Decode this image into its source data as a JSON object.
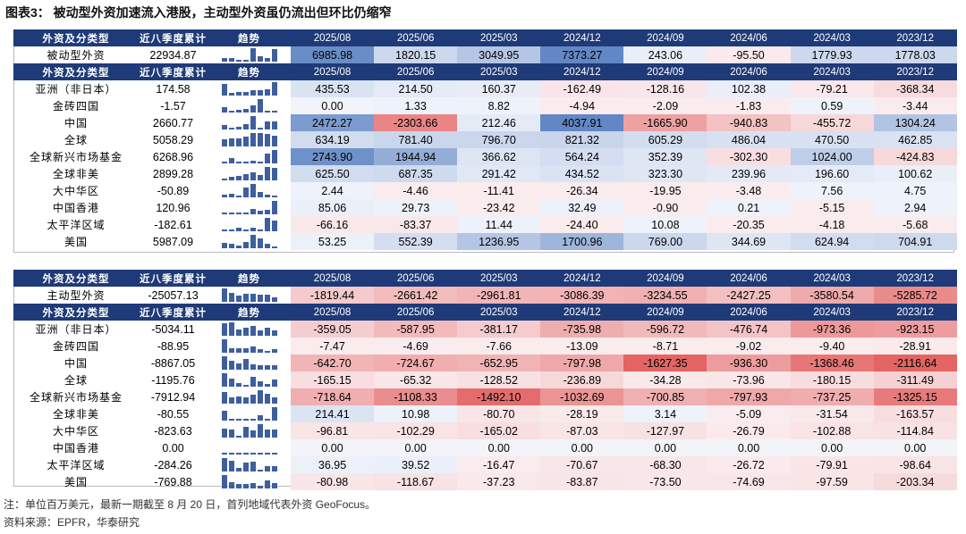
{
  "title": "图表3：  被动型外资加速流入港股，主动型外资虽仍流出但环比仍缩窄",
  "columns": [
    "外资及分类型",
    "近八季度累计",
    "趋势",
    "2025/08",
    "2025/06",
    "2025/03",
    "2024/12",
    "2024/09",
    "2024/06",
    "2024/03",
    "2023/12"
  ],
  "colors": {
    "header": "#1f3a78",
    "positive": "#3e5f9e",
    "negative": "#e05a5a"
  },
  "tables": [
    {
      "summary": {
        "name": "被动型外资",
        "total": "22934.87",
        "values": [
          "6985.98",
          "1820.15",
          "3049.95",
          "7373.27",
          "243.06",
          "-95.50",
          "1779.93",
          "1778.03"
        ]
      },
      "rows": [
        {
          "name": "亚洲（非日本）",
          "total": "174.58",
          "values": [
            "435.53",
            "214.50",
            "160.37",
            "-162.49",
            "-128.16",
            "102.38",
            "-79.21",
            "-368.34"
          ]
        },
        {
          "name": "金砖四国",
          "total": "-1.57",
          "values": [
            "0.00",
            "1.33",
            "8.82",
            "-4.94",
            "-2.09",
            "-1.83",
            "0.59",
            "-3.44"
          ]
        },
        {
          "name": "中国",
          "total": "2660.77",
          "values": [
            "2472.27",
            "-2303.66",
            "212.46",
            "4037.91",
            "-1665.90",
            "-940.83",
            "-455.72",
            "1304.24"
          ]
        },
        {
          "name": "全球",
          "total": "5058.29",
          "values": [
            "634.19",
            "781.40",
            "796.70",
            "821.32",
            "605.29",
            "486.04",
            "470.50",
            "462.85"
          ]
        },
        {
          "name": "全球新兴市场基金",
          "total": "6268.96",
          "values": [
            "2743.90",
            "1944.94",
            "366.62",
            "564.24",
            "352.39",
            "-302.30",
            "1024.00",
            "-424.83"
          ]
        },
        {
          "name": "全球非美",
          "total": "2899.28",
          "values": [
            "625.50",
            "687.35",
            "291.42",
            "434.52",
            "323.30",
            "239.96",
            "196.60",
            "100.62"
          ]
        },
        {
          "name": "大中华区",
          "total": "-50.89",
          "values": [
            "2.44",
            "-4.46",
            "-11.41",
            "-26.34",
            "-19.95",
            "-3.48",
            "7.56",
            "4.75"
          ]
        },
        {
          "name": "中国香港",
          "total": "120.96",
          "values": [
            "85.06",
            "29.73",
            "-23.42",
            "32.49",
            "-0.90",
            "0.21",
            "-5.15",
            "2.94"
          ]
        },
        {
          "name": "太平洋区域",
          "total": "-182.61",
          "values": [
            "-66.16",
            "-83.37",
            "11.44",
            "-24.40",
            "10.08",
            "-20.35",
            "-4.18",
            "-5.68"
          ]
        },
        {
          "name": "美国",
          "total": "5987.09",
          "values": [
            "53.25",
            "552.39",
            "1236.95",
            "1700.96",
            "769.00",
            "344.69",
            "624.94",
            "704.91"
          ]
        }
      ]
    },
    {
      "summary": {
        "name": "主动型外资",
        "total": "-25057.13",
        "values": [
          "-1819.44",
          "-2661.42",
          "-2961.81",
          "-3086.39",
          "-3234.55",
          "-2427.25",
          "-3580.54",
          "-5285.72"
        ]
      },
      "rows": [
        {
          "name": "亚洲（非日本）",
          "total": "-5034.11",
          "values": [
            "-359.05",
            "-587.95",
            "-381.17",
            "-735.98",
            "-596.72",
            "-476.74",
            "-973.36",
            "-923.15"
          ]
        },
        {
          "name": "金砖四国",
          "total": "-88.95",
          "values": [
            "-7.47",
            "-4.69",
            "-7.66",
            "-13.09",
            "-8.71",
            "-9.02",
            "-9.40",
            "-28.91"
          ]
        },
        {
          "name": "中国",
          "total": "-8867.05",
          "values": [
            "-642.70",
            "-724.67",
            "-652.95",
            "-797.98",
            "-1627.35",
            "-936.30",
            "-1368.46",
            "-2116.64"
          ]
        },
        {
          "name": "全球",
          "total": "-1195.76",
          "values": [
            "-165.15",
            "-65.32",
            "-128.52",
            "-236.89",
            "-34.28",
            "-73.96",
            "-180.15",
            "-311.49"
          ]
        },
        {
          "name": "全球新兴市场基金",
          "total": "-7912.94",
          "values": [
            "-718.64",
            "-1108.33",
            "-1492.10",
            "-1032.69",
            "-700.85",
            "-797.93",
            "-737.25",
            "-1325.15"
          ]
        },
        {
          "name": "全球非美",
          "total": "-80.55",
          "values": [
            "214.41",
            "10.98",
            "-80.70",
            "-28.19",
            "3.14",
            "-5.09",
            "-31.54",
            "-163.57"
          ]
        },
        {
          "name": "大中华区",
          "total": "-823.63",
          "values": [
            "-96.81",
            "-102.29",
            "-165.02",
            "-87.03",
            "-127.97",
            "-26.79",
            "-102.88",
            "-114.84"
          ]
        },
        {
          "name": "中国香港",
          "total": "0.00",
          "values": [
            "0.00",
            "0.00",
            "0.00",
            "0.00",
            "0.00",
            "0.00",
            "0.00",
            "0.00"
          ]
        },
        {
          "name": "太平洋区域",
          "total": "-284.26",
          "values": [
            "36.95",
            "39.52",
            "-16.47",
            "-70.67",
            "-68.30",
            "-26.72",
            "-79.91",
            "-98.64"
          ]
        },
        {
          "name": "美国",
          "total": "-769.88",
          "values": [
            "-80.98",
            "-118.67",
            "-37.23",
            "-83.87",
            "-73.50",
            "-74.69",
            "-97.59",
            "-203.34"
          ]
        }
      ]
    }
  ],
  "footer": {
    "note": "注：单位百万美元，最新一期截至 8 月 20 日，首列地域代表外资 GeoFocus。",
    "source": "资料来源：EPFR，华泰研究"
  }
}
